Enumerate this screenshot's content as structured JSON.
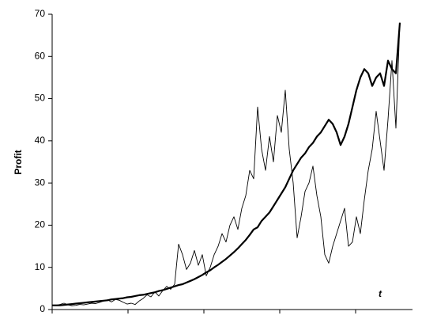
{
  "chart_data": {
    "type": "line",
    "y_label": "Profit",
    "x_label": "t",
    "categories": [
      null,
      null,
      null,
      null,
      null,
      null,
      null,
      null,
      null,
      null,
      null,
      null,
      null,
      null,
      null,
      null,
      null,
      null,
      null,
      null,
      null,
      null,
      null,
      null,
      null,
      null,
      null,
      null,
      null,
      null,
      null,
      null,
      null,
      null,
      null,
      null,
      null,
      null,
      null,
      null,
      null,
      null,
      null,
      null,
      null,
      null,
      null,
      null,
      null,
      null,
      null,
      null,
      null,
      null,
      null,
      null,
      null,
      null,
      null,
      null,
      null,
      null,
      null,
      null,
      null,
      null,
      null,
      null,
      null,
      null,
      null,
      null,
      null,
      null,
      null,
      null,
      null,
      null,
      null,
      null,
      null,
      null,
      null,
      null,
      null,
      null,
      null,
      null,
      null
    ],
    "series": [
      {
        "color": "#000000",
        "width": 2.2,
        "values": [
          1,
          1,
          1,
          1.1,
          1.2,
          1.3,
          1.4,
          1.5,
          1.6,
          1.7,
          1.8,
          1.9,
          2,
          2.1,
          2.2,
          2.4,
          2.5,
          2.6,
          2.7,
          2.9,
          3,
          3.2,
          3.4,
          3.5,
          3.7,
          3.9,
          4.1,
          4.4,
          4.6,
          4.9,
          5.2,
          5.5,
          5.8,
          6,
          6.4,
          6.8,
          7.2,
          7.7,
          8.2,
          8.8,
          9.3,
          10,
          10.6,
          11.3,
          12,
          12.8,
          13.6,
          14.5,
          15.5,
          16.5,
          17.7,
          19,
          19.5,
          21,
          22,
          23,
          24.5,
          26,
          27.5,
          29,
          31,
          33,
          34.5,
          36,
          37,
          38.5,
          39.5,
          41,
          42,
          43.5,
          45,
          44,
          42,
          39,
          41,
          44,
          48,
          52,
          55,
          57,
          56,
          53,
          55,
          56,
          53,
          59,
          57,
          56,
          68
        ]
      },
      {
        "color": "#000000",
        "width": 0.9,
        "values": [
          1,
          1,
          1.2,
          1.5,
          1.1,
          0.9,
          1,
          1.2,
          1.1,
          1.3,
          1.5,
          1.4,
          1.7,
          2,
          2.3,
          1.8,
          2.4,
          2.2,
          1.7,
          1.3,
          1.5,
          1.2,
          2,
          2.6,
          3.5,
          3,
          4.2,
          3.2,
          4.5,
          5.5,
          4.8,
          6,
          15.5,
          13,
          9.5,
          11,
          14,
          10.5,
          13,
          8,
          10,
          13,
          15,
          18,
          16,
          20,
          22,
          19,
          24,
          27,
          33,
          31,
          48,
          38,
          33,
          41,
          35,
          46,
          42,
          52,
          38,
          30,
          17,
          22,
          28,
          30,
          34,
          27,
          22,
          13,
          11,
          15,
          18,
          21,
          24,
          15,
          16,
          22,
          18,
          26,
          33,
          38,
          47,
          40,
          33,
          45,
          59,
          43,
          68
        ]
      }
    ],
    "ylim": [
      0,
      70
    ],
    "yticks": [
      0,
      10,
      20,
      30,
      40,
      50,
      60,
      70
    ]
  }
}
